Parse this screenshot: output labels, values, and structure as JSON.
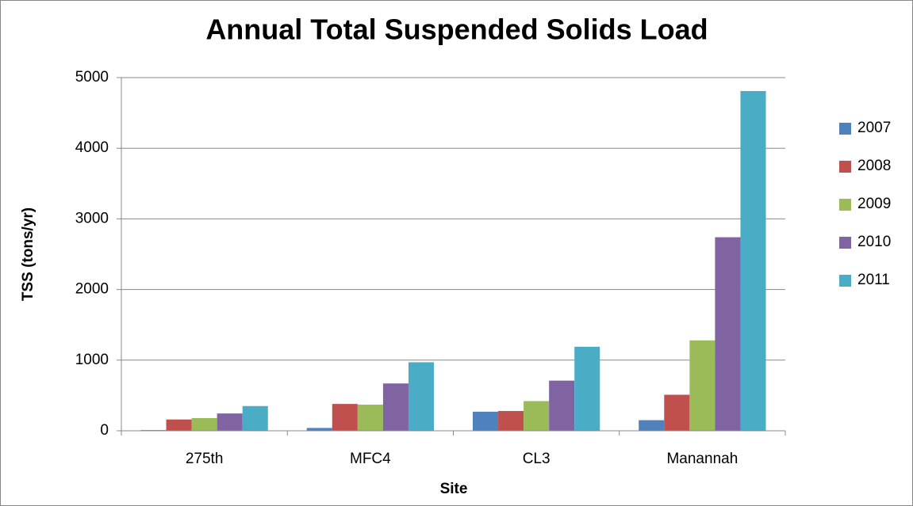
{
  "chart_data": {
    "type": "bar",
    "title": "Annual Total Suspended Solids Load",
    "x_label": "Site",
    "y_label": "TSS (tons/yr)",
    "categories": [
      "275th",
      "MFC4",
      "CL3",
      "Manannah"
    ],
    "series": [
      {
        "name": "2007",
        "color": "#4f81bd",
        "values": [
          10,
          40,
          270,
          150
        ]
      },
      {
        "name": "2008",
        "color": "#c0504d",
        "values": [
          160,
          380,
          280,
          510
        ]
      },
      {
        "name": "2009",
        "color": "#9bbb59",
        "values": [
          180,
          370,
          420,
          1280
        ]
      },
      {
        "name": "2010",
        "color": "#8064a2",
        "values": [
          245,
          670,
          710,
          2740
        ]
      },
      {
        "name": "2011",
        "color": "#4bacc6",
        "values": [
          350,
          970,
          1190,
          4810
        ]
      }
    ],
    "ylim": [
      0,
      5000
    ],
    "yticks": [
      0,
      1000,
      2000,
      3000,
      4000,
      5000
    ],
    "grid": true,
    "legend": "right"
  }
}
